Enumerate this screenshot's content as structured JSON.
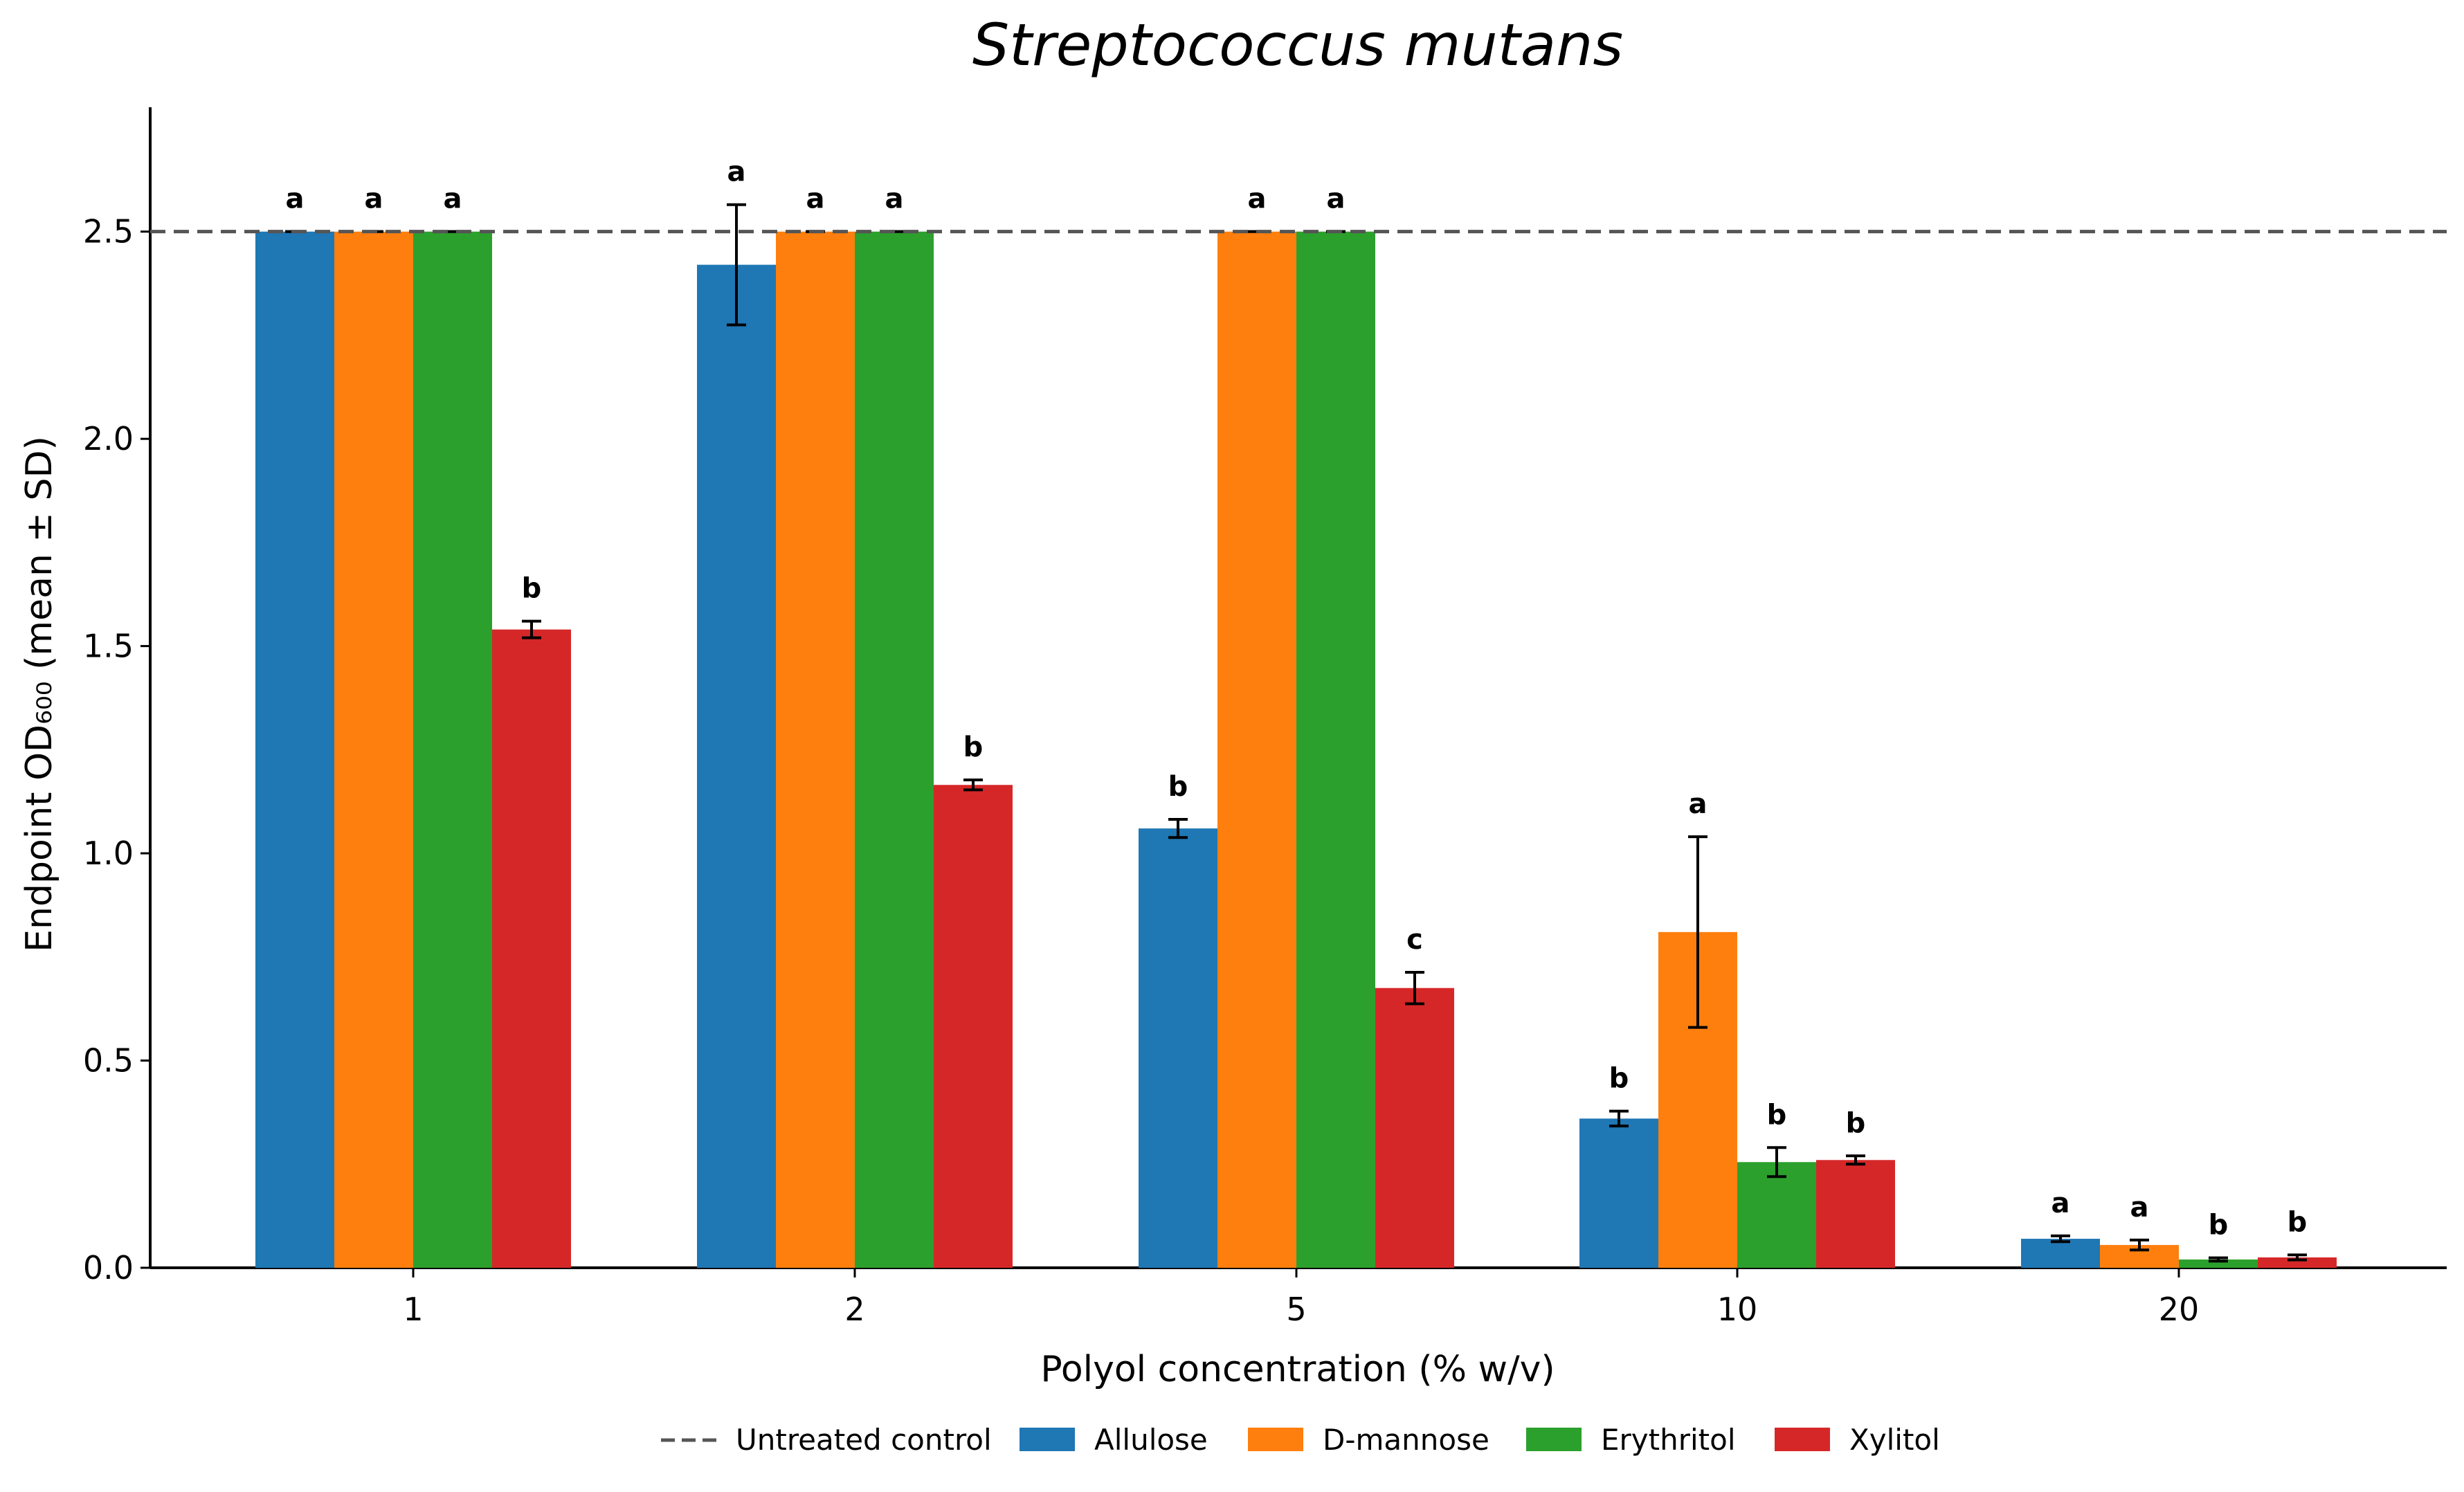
{
  "chart_data": {
    "type": "bar",
    "title": "Streptococcus mutans",
    "xlabel": "Polyol concentration (% w/v)",
    "ylabel": "Endpoint OD₆₀₀ (mean ± SD)",
    "ylim": [
      0,
      2.8
    ],
    "yticks": [
      "0.0",
      "0.5",
      "1.0",
      "1.5",
      "2.0",
      "2.5"
    ],
    "categories": [
      "1",
      "2",
      "5",
      "10",
      "20"
    ],
    "reference_line": {
      "name": "Untreated control",
      "value": 2.5,
      "style": "dashed",
      "color": "#555555"
    },
    "series": [
      {
        "name": "Allulose",
        "color": "#1f77b4",
        "values": [
          2.5,
          2.42,
          1.06,
          0.36,
          0.07
        ],
        "errors": [
          0.0,
          0.145,
          0.022,
          0.018,
          0.007
        ],
        "letters": [
          "a",
          "a",
          "b",
          "b",
          "a"
        ]
      },
      {
        "name": "D-mannose",
        "color": "#ff7f0e",
        "values": [
          2.5,
          2.5,
          2.5,
          0.81,
          0.055
        ],
        "errors": [
          0.0,
          0.0,
          0.0,
          0.23,
          0.012
        ],
        "letters": [
          "a",
          "a",
          "a",
          "a",
          "a"
        ]
      },
      {
        "name": "Erythritol",
        "color": "#2ca02c",
        "values": [
          2.5,
          2.5,
          2.5,
          0.255,
          0.02
        ],
        "errors": [
          0.0,
          0.0,
          0.0,
          0.035,
          0.004
        ],
        "letters": [
          "a",
          "a",
          "a",
          "b",
          "b"
        ]
      },
      {
        "name": "Xylitol",
        "color": "#d62728",
        "values": [
          1.54,
          1.165,
          0.675,
          0.26,
          0.025
        ],
        "errors": [
          0.02,
          0.012,
          0.038,
          0.01,
          0.006
        ],
        "letters": [
          "b",
          "b",
          "c",
          "b",
          "b"
        ]
      }
    ],
    "grid": false,
    "legend_placement": "bottom-center"
  }
}
